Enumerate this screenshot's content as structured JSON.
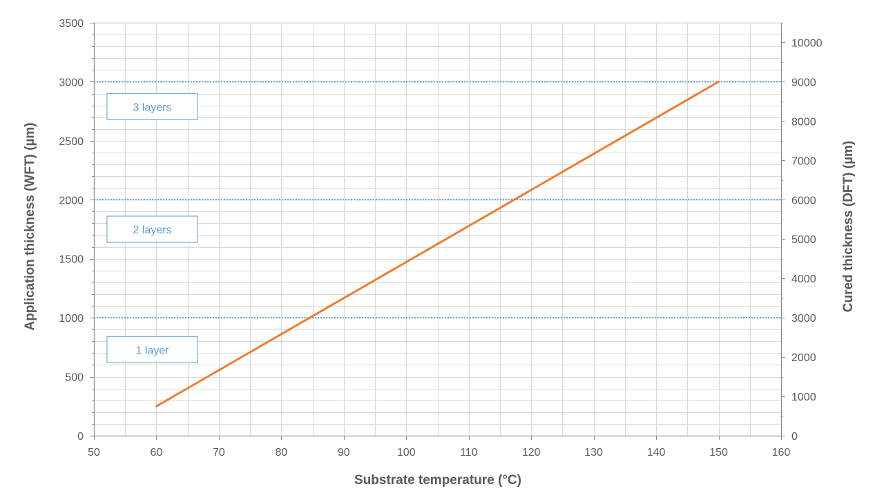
{
  "chart_data": {
    "type": "line",
    "xlabel": "Substrate temperature (°C)",
    "ylabel": "Application thickness (WFT) (µm)",
    "y2label": "Cured thickness (DFT) (µm)",
    "xlim": [
      50,
      160
    ],
    "ylim": [
      0,
      3500
    ],
    "y2lim": [
      0,
      10500
    ],
    "x_ticks": [
      50,
      60,
      70,
      80,
      90,
      100,
      110,
      120,
      130,
      140,
      150,
      160
    ],
    "y_ticks": [
      0,
      500,
      1000,
      1500,
      2000,
      2500,
      3000,
      3500
    ],
    "y2_ticks": [
      0,
      1000,
      2000,
      3000,
      4000,
      5000,
      6000,
      7000,
      8000,
      9000,
      10000
    ],
    "grid": true,
    "legend": "none",
    "series": [
      {
        "x": [
          60,
          150
        ],
        "values": [
          250,
          3000
        ],
        "color": "#ed7d31"
      }
    ],
    "reference_lines": [
      {
        "y": 1000,
        "label": "1 layer",
        "label_y": 730
      },
      {
        "y": 2000,
        "label": "2 layers",
        "label_y": 1750
      },
      {
        "y": 3000,
        "label": "3 layers",
        "label_y": 2790
      }
    ],
    "reference_color": "#5b9bd5",
    "grid_color": "#d9d9d9"
  }
}
